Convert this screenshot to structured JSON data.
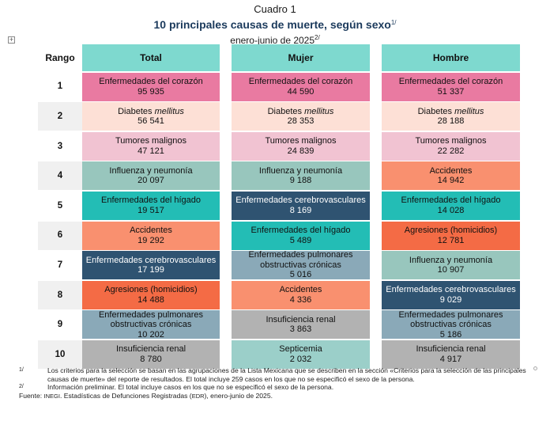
{
  "title": {
    "label": "Cuadro 1",
    "main": "10 principales causas de muerte, según sexo",
    "main_sup": "1/",
    "sub": "enero-junio de 2025",
    "sub_sup": "2/"
  },
  "headers": {
    "rank": "Rango",
    "total": "Total",
    "mujer": "Mujer",
    "hombre": "Hombre"
  },
  "ranks": [
    "1",
    "2",
    "3",
    "4",
    "5",
    "6",
    "7",
    "8",
    "9",
    "10"
  ],
  "total": [
    {
      "name": "Enfermedades del corazón",
      "value": "95 935",
      "cat": "heart"
    },
    {
      "name": "Diabetes mellitus",
      "value": "56 541",
      "cat": "diab"
    },
    {
      "name": "Tumores malignos",
      "value": "47 121",
      "cat": "tumor"
    },
    {
      "name": "Influenza y neumonía",
      "value": "20 097",
      "cat": "influ"
    },
    {
      "name": "Enfermedades del hígado",
      "value": "19 517",
      "cat": "liver"
    },
    {
      "name": "Accidentes",
      "value": "19 292",
      "cat": "accid"
    },
    {
      "name": "Enfermedades cerebrovasculares",
      "value": "17 199",
      "cat": "cereb"
    },
    {
      "name": "Agresiones (homicidios)",
      "value": "14 488",
      "cat": "aggr"
    },
    {
      "name": "Enfermedades pulmonares obstructivas crónicas",
      "value": "10 202",
      "cat": "epoc"
    },
    {
      "name": "Insuficiencia renal",
      "value": "8 780",
      "cat": "renal"
    }
  ],
  "mujer": [
    {
      "name": "Enfermedades del corazón",
      "value": "44 590",
      "cat": "heart"
    },
    {
      "name": "Diabetes mellitus",
      "value": "28 353",
      "cat": "diab"
    },
    {
      "name": "Tumores malignos",
      "value": "24 839",
      "cat": "tumor"
    },
    {
      "name": "Influenza y neumonía",
      "value": "9 188",
      "cat": "influ"
    },
    {
      "name": "Enfermedades cerebrovasculares",
      "value": "8 169",
      "cat": "cereb"
    },
    {
      "name": "Enfermedades del hígado",
      "value": "5 489",
      "cat": "liver"
    },
    {
      "name": "Enfermedades pulmonares obstructivas crónicas",
      "value": "5 016",
      "cat": "epoc"
    },
    {
      "name": "Accidentes",
      "value": "4 336",
      "cat": "accid"
    },
    {
      "name": "Insuficiencia renal",
      "value": "3 863",
      "cat": "renal"
    },
    {
      "name": "Septicemia",
      "value": "2 032",
      "cat": "sept"
    }
  ],
  "hombre": [
    {
      "name": "Enfermedades del corazón",
      "value": "51 337",
      "cat": "heart"
    },
    {
      "name": "Diabetes mellitus",
      "value": "28 188",
      "cat": "diab"
    },
    {
      "name": "Tumores malignos",
      "value": "22 282",
      "cat": "tumor"
    },
    {
      "name": "Accidentes",
      "value": "14 942",
      "cat": "accid"
    },
    {
      "name": "Enfermedades del hígado",
      "value": "14 028",
      "cat": "liver"
    },
    {
      "name": "Agresiones (homicidios)",
      "value": "12 781",
      "cat": "aggr"
    },
    {
      "name": "Influenza y neumonía",
      "value": "10 907",
      "cat": "influ"
    },
    {
      "name": "Enfermedades cerebrovasculares",
      "value": "9 029",
      "cat": "cereb"
    },
    {
      "name": "Enfermedades pulmonares obstructivas crónicas",
      "value": "5 186",
      "cat": "epoc"
    },
    {
      "name": "Insuficiencia renal",
      "value": "4 917",
      "cat": "renal"
    }
  ],
  "category_colors": {
    "heart": "#e97aa1",
    "diab": "#fde0d6",
    "tumor": "#f1c3d2",
    "influ": "#98c6bd",
    "liver": "#23bdb5",
    "accid": "#f9906f",
    "cereb": "#2f5371",
    "aggr": "#f46b45",
    "epoc": "#8aa9b8",
    "renal": "#b2b2b2",
    "sept": "#9bcfc9"
  },
  "notes": {
    "n1_mark": "1/",
    "n1_text": "Los criterios para la selección se basan en las agrupaciones de la Lista Mexicana que se describen en la sección «Criterios para la selección de las principales causas de muerte» del reporte de resultados. El total incluye 259 casos en los que no se especificó el sexo de la persona.",
    "n2_mark": "2/",
    "n2_text": "Información preliminar. El total incluye casos en los que no se especificó el sexo de la persona.",
    "source_label": "Fuente:",
    "source_org": "INEGI",
    "source_mid": ". Estadísticas de Defunciones Registradas (",
    "source_abbr": "EDR",
    "source_end": "), enero-junio de 2025."
  }
}
